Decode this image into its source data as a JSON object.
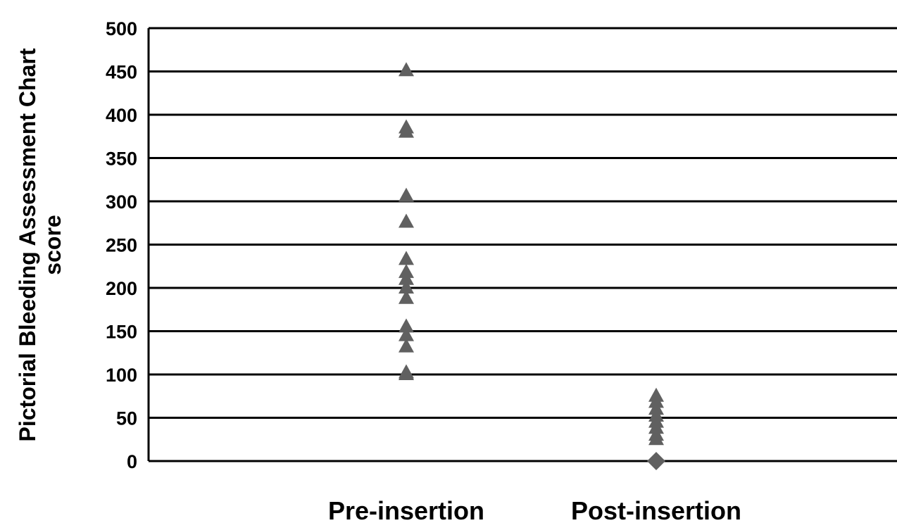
{
  "chart_data": {
    "type": "scatter",
    "title": "",
    "xlabel": "",
    "ylabel_lines": [
      "Pictorial Bleeding Assessment Chart",
      "score"
    ],
    "ylim": [
      0,
      500
    ],
    "y_ticks": [
      0,
      50,
      100,
      150,
      200,
      250,
      300,
      350,
      400,
      450,
      500
    ],
    "y_tick_labels": [
      "0",
      "50",
      "100",
      "150",
      "200",
      "250",
      "300",
      "350",
      "400",
      "450",
      "500"
    ],
    "grid": true,
    "categories": [
      "Pre-insertion",
      "Post-insertion"
    ],
    "series": [
      {
        "category": "Pre-insertion",
        "marker": "triangle",
        "color": "#606060",
        "values": [
          451,
          385,
          380,
          306,
          276,
          233,
          218,
          210,
          200,
          188,
          155,
          145,
          132,
          102,
          100
        ]
      },
      {
        "category": "Post-insertion",
        "marker": "triangle",
        "color": "#606060",
        "values": [
          75,
          68,
          60,
          52,
          45,
          38,
          30,
          25
        ]
      },
      {
        "category": "Post-insertion",
        "marker": "diamond",
        "color": "#606060",
        "values": [
          0
        ]
      }
    ]
  }
}
